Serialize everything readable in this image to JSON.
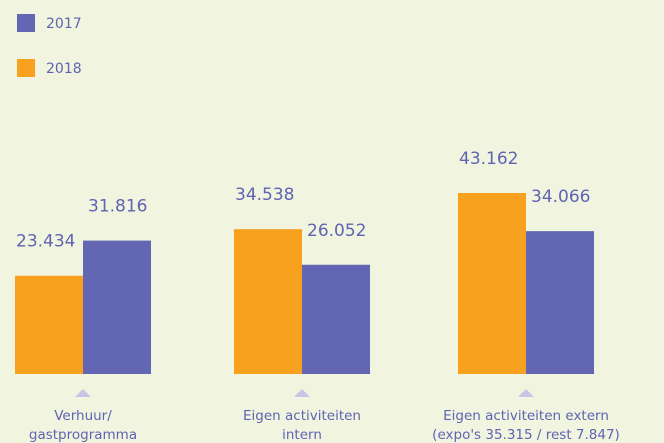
{
  "chart_data": {
    "type": "bar",
    "categories": [
      [
        "Verhuur/",
        "gastprogramma"
      ],
      [
        "Eigen activiteiten",
        "intern"
      ],
      [
        "Eigen activiteiten extern",
        "(expo's 35.315 / rest 7.847)"
      ]
    ],
    "series": [
      {
        "name": "2017",
        "color": "#6366b2",
        "values": [
          31816,
          26052,
          34066
        ],
        "value_labels": [
          "31.816",
          "26.052",
          "34.066"
        ]
      },
      {
        "name": "2018",
        "color": "#f7a11e",
        "values": [
          23434,
          34538,
          43162
        ],
        "value_labels": [
          "23.434",
          "34.538",
          "43.162"
        ]
      }
    ],
    "legend": "top-left"
  }
}
